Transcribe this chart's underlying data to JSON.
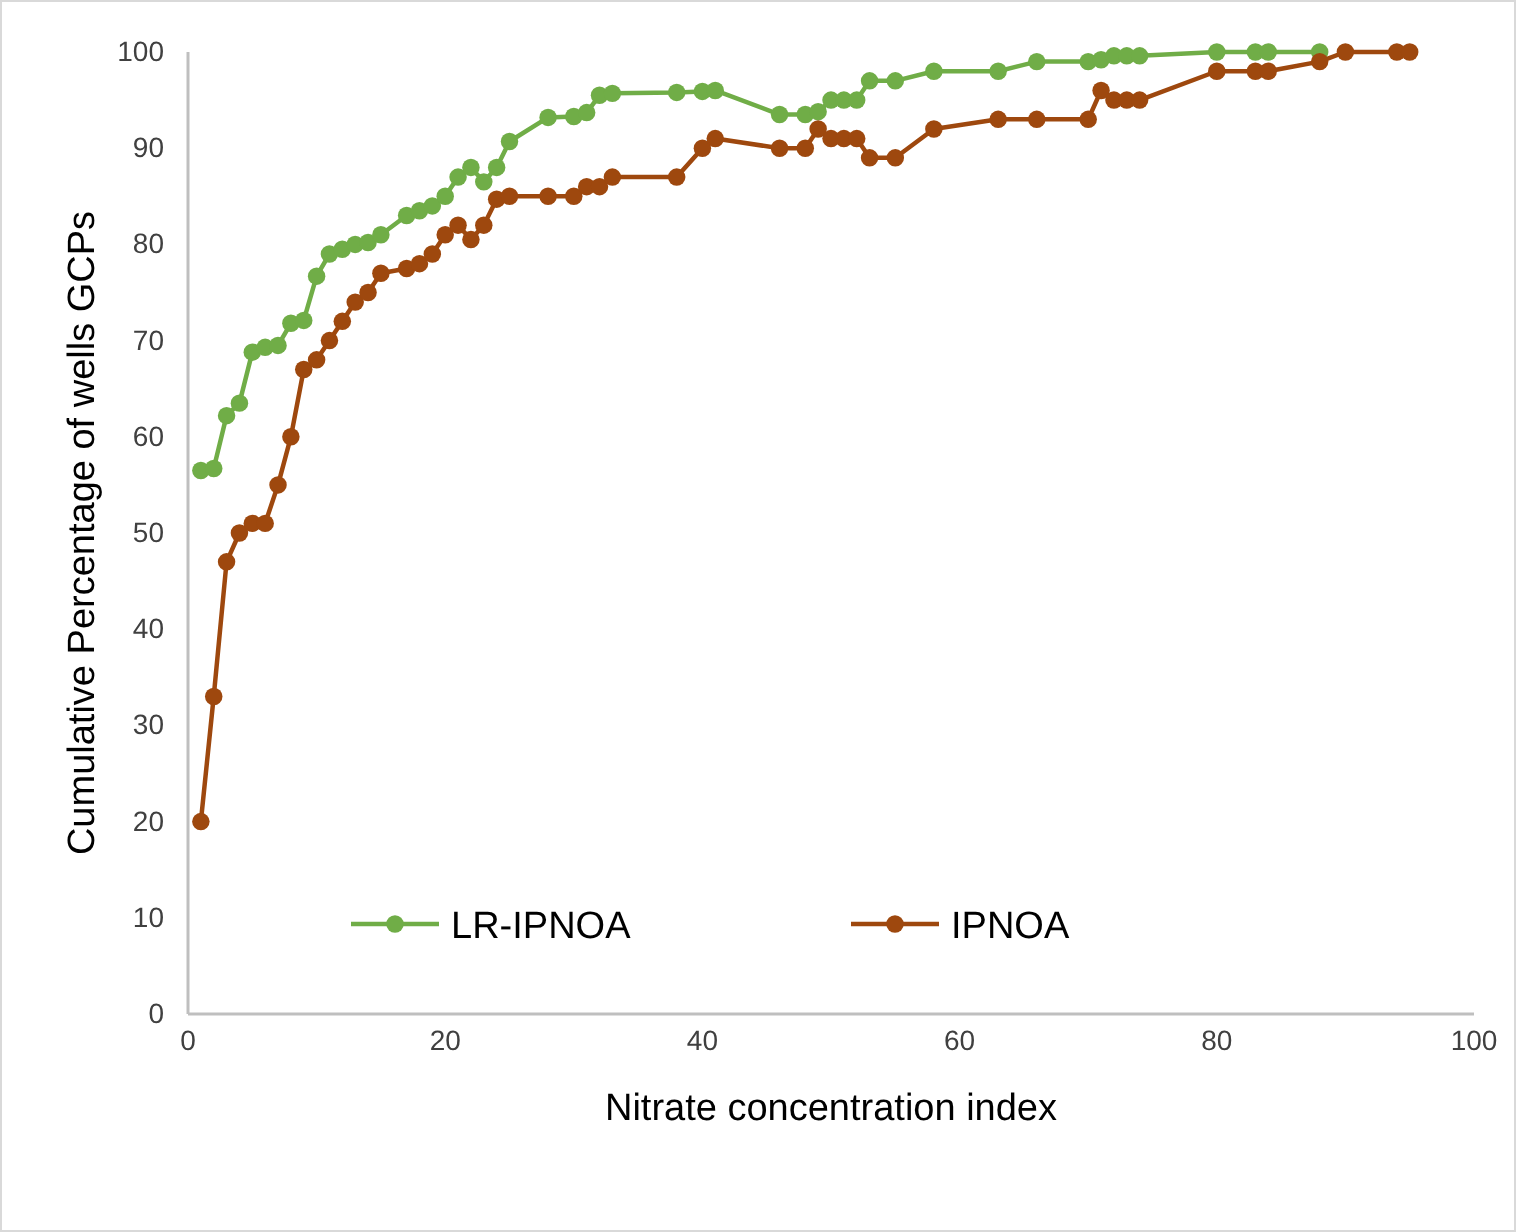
{
  "chart_data": {
    "type": "line",
    "xlabel": "Nitrate concentration index",
    "ylabel": "Cumulative Percentage of wells GCPs",
    "xlim": [
      0,
      100
    ],
    "xticks": [
      0,
      20,
      40,
      60,
      80,
      100
    ],
    "ylim": [
      0,
      100
    ],
    "yticks": [
      0,
      10,
      20,
      30,
      40,
      50,
      60,
      70,
      80,
      90,
      100
    ],
    "grid": false,
    "legend": "bottom",
    "marker": "circle",
    "line_style": "solid",
    "series": [
      {
        "name": "LR-IPNOA",
        "color": "#70ad47",
        "x": [
          1,
          2,
          3,
          4,
          5,
          6,
          7,
          8,
          9,
          10,
          11,
          12,
          13,
          14,
          15,
          17,
          18,
          19,
          20,
          21,
          22,
          23,
          24,
          25,
          28,
          30,
          31,
          32,
          33,
          38,
          40,
          41,
          46,
          48,
          49,
          50,
          51,
          52,
          53,
          55,
          58,
          63,
          66,
          70,
          71,
          72,
          73,
          74,
          80,
          83,
          84,
          88
        ],
        "values": [
          56.5,
          56.7,
          62.2,
          63.5,
          68.8,
          69.3,
          69.5,
          71.8,
          72.1,
          76.7,
          79,
          79.5,
          80,
          80.2,
          81,
          83,
          83.5,
          84,
          85,
          87,
          88,
          86.5,
          88,
          90.7,
          93.2,
          93.3,
          93.7,
          95.5,
          95.7,
          95.8,
          95.9,
          96,
          93.5,
          93.5,
          93.8,
          95,
          95,
          95,
          97,
          97,
          98,
          98,
          99,
          99,
          99.2,
          99.6,
          99.6,
          99.6,
          100,
          100,
          100,
          100
        ]
      },
      {
        "name": "IPNOA",
        "color": "#9e480e",
        "x": [
          1,
          2,
          3,
          4,
          5,
          6,
          7,
          8,
          9,
          10,
          11,
          12,
          13,
          14,
          15,
          17,
          18,
          19,
          20,
          21,
          22,
          23,
          24,
          25,
          28,
          30,
          31,
          32,
          33,
          38,
          40,
          41,
          46,
          48,
          49,
          50,
          51,
          52,
          53,
          55,
          58,
          63,
          66,
          70,
          71,
          72,
          73,
          74,
          80,
          83,
          84,
          88,
          90,
          94,
          95
        ],
        "values": [
          20,
          33,
          47,
          50,
          51,
          51,
          55,
          60,
          67,
          68,
          70,
          72,
          74,
          75,
          77,
          77.5,
          78,
          79,
          81,
          82,
          80.5,
          82,
          84.7,
          85,
          85,
          85,
          86,
          86,
          87,
          87,
          90,
          91,
          90,
          90,
          92,
          91,
          91,
          91,
          89,
          89,
          92,
          93,
          93,
          93,
          96,
          95,
          95,
          95,
          98,
          98,
          98,
          99,
          100,
          100,
          100
        ]
      }
    ]
  }
}
